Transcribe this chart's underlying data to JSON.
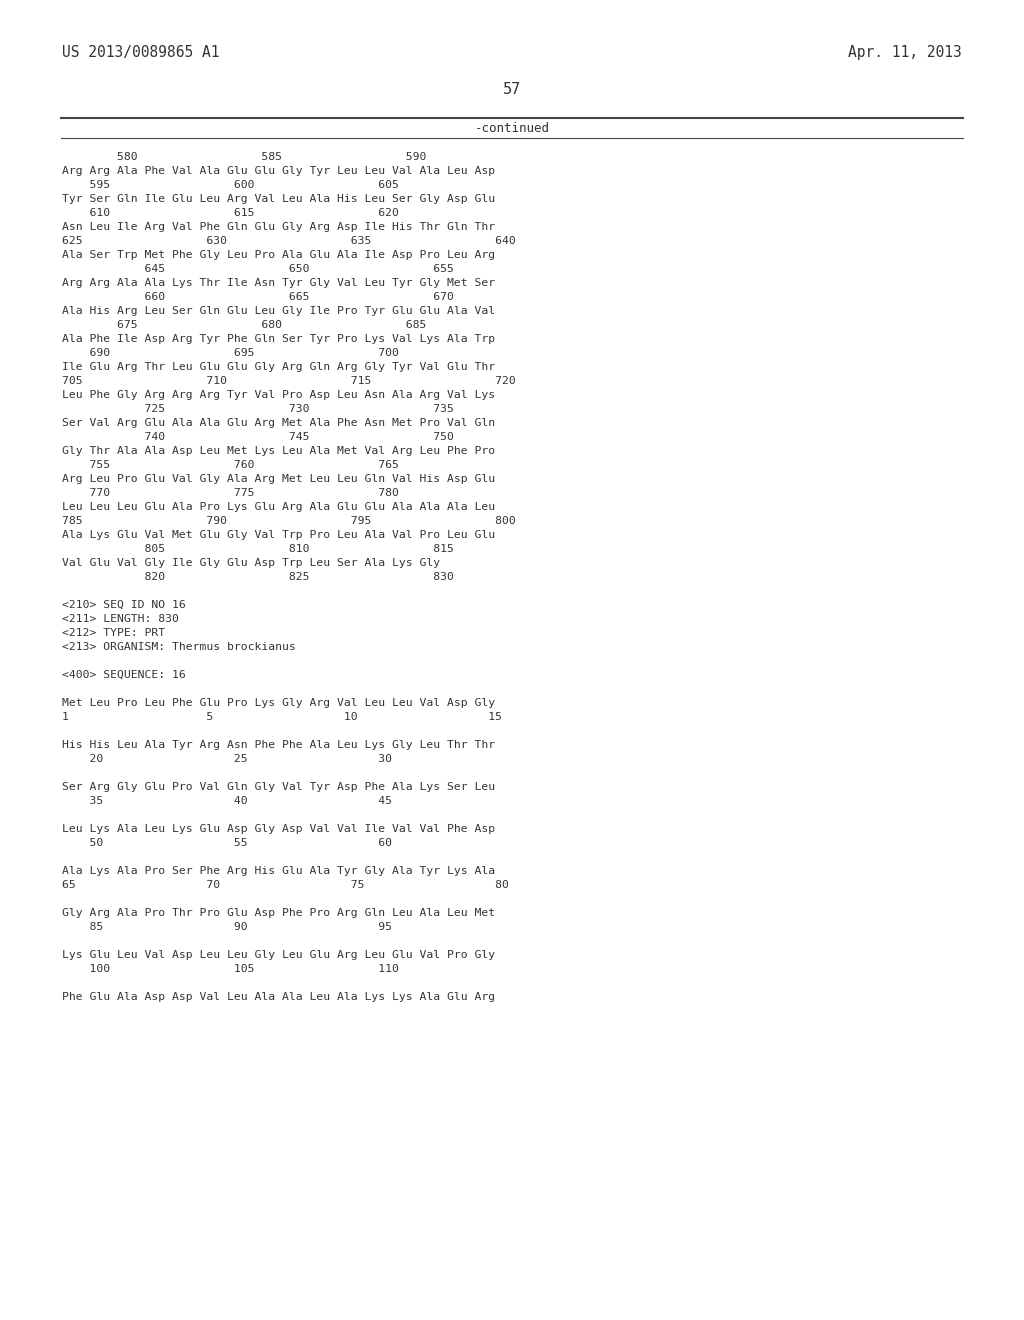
{
  "background_color": "#ffffff",
  "header_left": "US 2013/0089865 A1",
  "header_right": "Apr. 11, 2013",
  "page_number": "57",
  "continued_label": "-continued",
  "body_lines": [
    "        580                  585                  590",
    "Arg Arg Ala Phe Val Ala Glu Glu Gly Tyr Leu Leu Val Ala Leu Asp",
    "    595                  600                  605",
    "Tyr Ser Gln Ile Glu Leu Arg Val Leu Ala His Leu Ser Gly Asp Glu",
    "    610                  615                  620",
    "Asn Leu Ile Arg Val Phe Gln Glu Gly Arg Asp Ile His Thr Gln Thr",
    "625                  630                  635                  640",
    "Ala Ser Trp Met Phe Gly Leu Pro Ala Glu Ala Ile Asp Pro Leu Arg",
    "            645                  650                  655",
    "Arg Arg Ala Ala Lys Thr Ile Asn Tyr Gly Val Leu Tyr Gly Met Ser",
    "            660                  665                  670",
    "Ala His Arg Leu Ser Gln Glu Leu Gly Ile Pro Tyr Glu Glu Ala Val",
    "        675                  680                  685",
    "Ala Phe Ile Asp Arg Tyr Phe Gln Ser Tyr Pro Lys Val Lys Ala Trp",
    "    690                  695                  700",
    "Ile Glu Arg Thr Leu Glu Glu Gly Arg Gln Arg Gly Tyr Val Glu Thr",
    "705                  710                  715                  720",
    "Leu Phe Gly Arg Arg Arg Tyr Val Pro Asp Leu Asn Ala Arg Val Lys",
    "            725                  730                  735",
    "Ser Val Arg Glu Ala Ala Glu Arg Met Ala Phe Asn Met Pro Val Gln",
    "            740                  745                  750",
    "Gly Thr Ala Ala Asp Leu Met Lys Leu Ala Met Val Arg Leu Phe Pro",
    "    755                  760                  765",
    "Arg Leu Pro Glu Val Gly Ala Arg Met Leu Leu Gln Val His Asp Glu",
    "    770                  775                  780",
    "Leu Leu Leu Glu Ala Pro Lys Glu Arg Ala Glu Glu Ala Ala Ala Leu",
    "785                  790                  795                  800",
    "Ala Lys Glu Val Met Glu Gly Val Trp Pro Leu Ala Val Pro Leu Glu",
    "            805                  810                  815",
    "Val Glu Val Gly Ile Gly Glu Asp Trp Leu Ser Ala Lys Gly",
    "            820                  825                  830",
    "",
    "<210> SEQ ID NO 16",
    "<211> LENGTH: 830",
    "<212> TYPE: PRT",
    "<213> ORGANISM: Thermus brockianus",
    "",
    "<400> SEQUENCE: 16",
    "",
    "Met Leu Pro Leu Phe Glu Pro Lys Gly Arg Val Leu Leu Val Asp Gly",
    "1                    5                   10                   15",
    "",
    "His His Leu Ala Tyr Arg Asn Phe Phe Ala Leu Lys Gly Leu Thr Thr",
    "    20                   25                   30",
    "",
    "Ser Arg Gly Glu Pro Val Gln Gly Val Tyr Asp Phe Ala Lys Ser Leu",
    "    35                   40                   45",
    "",
    "Leu Lys Ala Leu Lys Glu Asp Gly Asp Val Val Ile Val Val Phe Asp",
    "    50                   55                   60",
    "",
    "Ala Lys Ala Pro Ser Phe Arg His Glu Ala Tyr Gly Ala Tyr Lys Ala",
    "65                   70                   75                   80",
    "",
    "Gly Arg Ala Pro Thr Pro Glu Asp Phe Pro Arg Gln Leu Ala Leu Met",
    "    85                   90                   95",
    "",
    "Lys Glu Leu Val Asp Leu Leu Gly Leu Glu Arg Leu Glu Val Pro Gly",
    "    100                  105                  110",
    "",
    "Phe Glu Ala Asp Asp Val Leu Ala Ala Leu Ala Lys Lys Ala Glu Arg"
  ]
}
